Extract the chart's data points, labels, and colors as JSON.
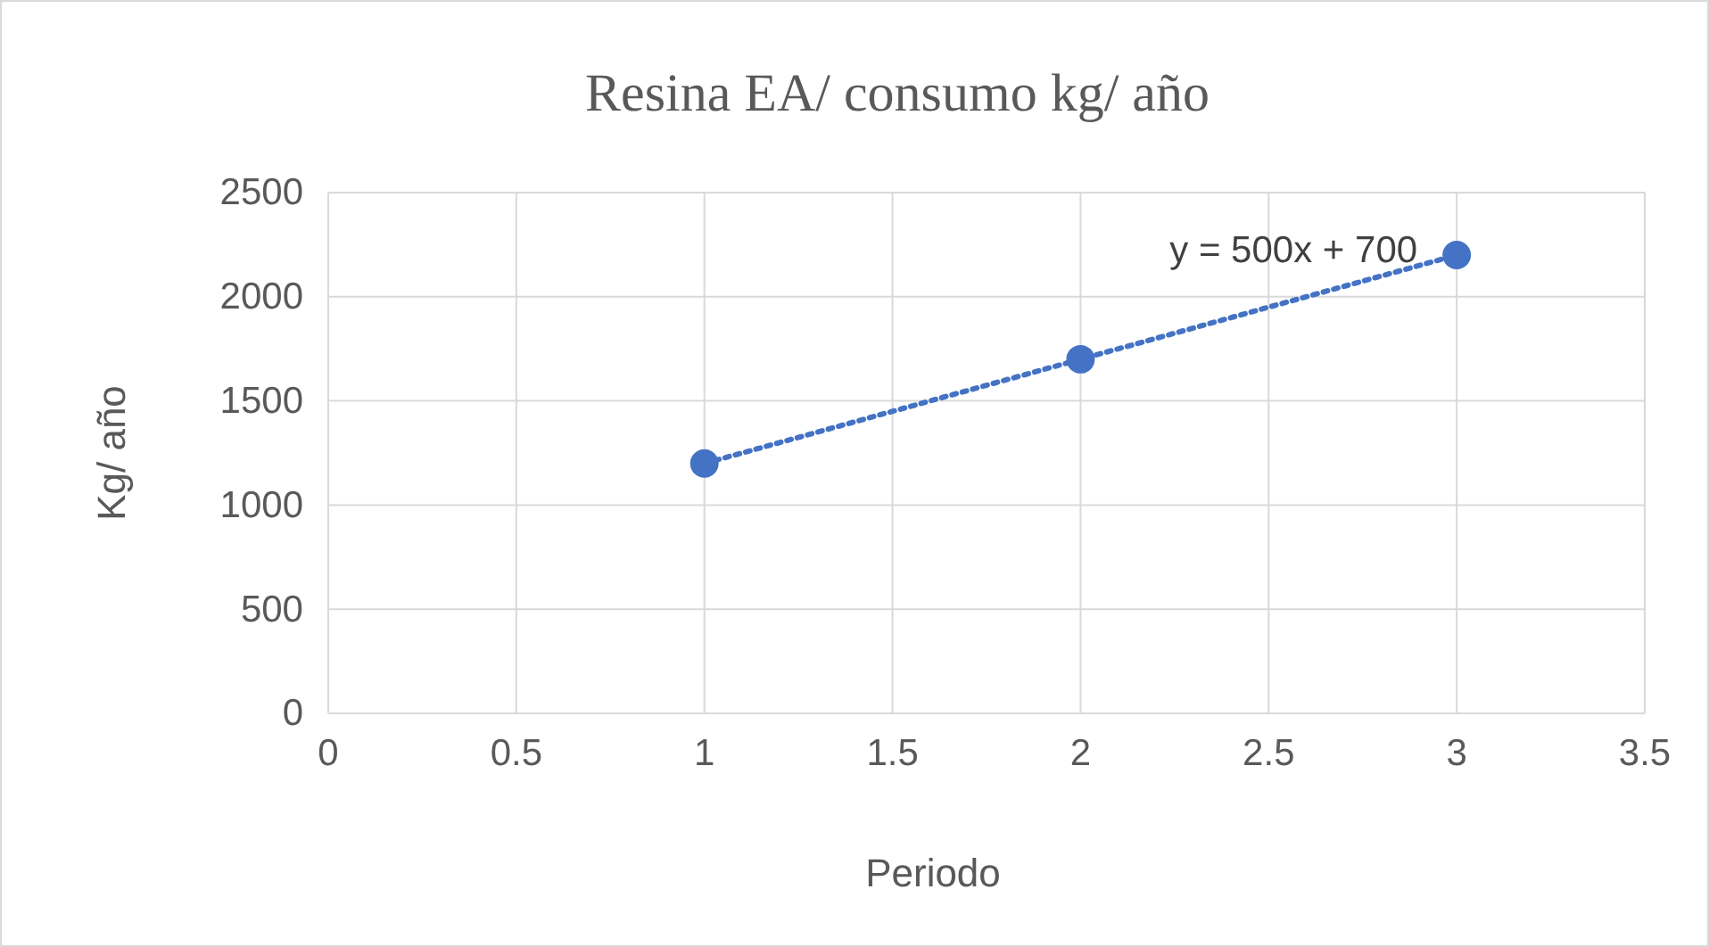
{
  "chart_data": {
    "type": "scatter",
    "title": "Resina EA/ consumo kg/ año",
    "xlabel": "Periodo",
    "ylabel": "Kg/ año",
    "xlim": [
      0,
      3.5
    ],
    "xticks": [
      0,
      0.5,
      1,
      1.5,
      2,
      2.5,
      3,
      3.5
    ],
    "ylim": [
      0,
      2500
    ],
    "yticks": [
      0,
      500,
      1000,
      1500,
      2000,
      2500
    ],
    "grid": true,
    "series": [
      {
        "color": "#4472c4",
        "marker": "circle",
        "x": [
          1,
          2,
          3
        ],
        "values": [
          1200,
          1700,
          2200
        ]
      },
      {
        "type": "line",
        "color": "#4472c4",
        "marker": "none",
        "line_style": "dotted",
        "x": [
          1,
          3
        ],
        "values": [
          1200,
          2200
        ]
      }
    ],
    "annotations": [
      "y = 500x + 700"
    ]
  }
}
